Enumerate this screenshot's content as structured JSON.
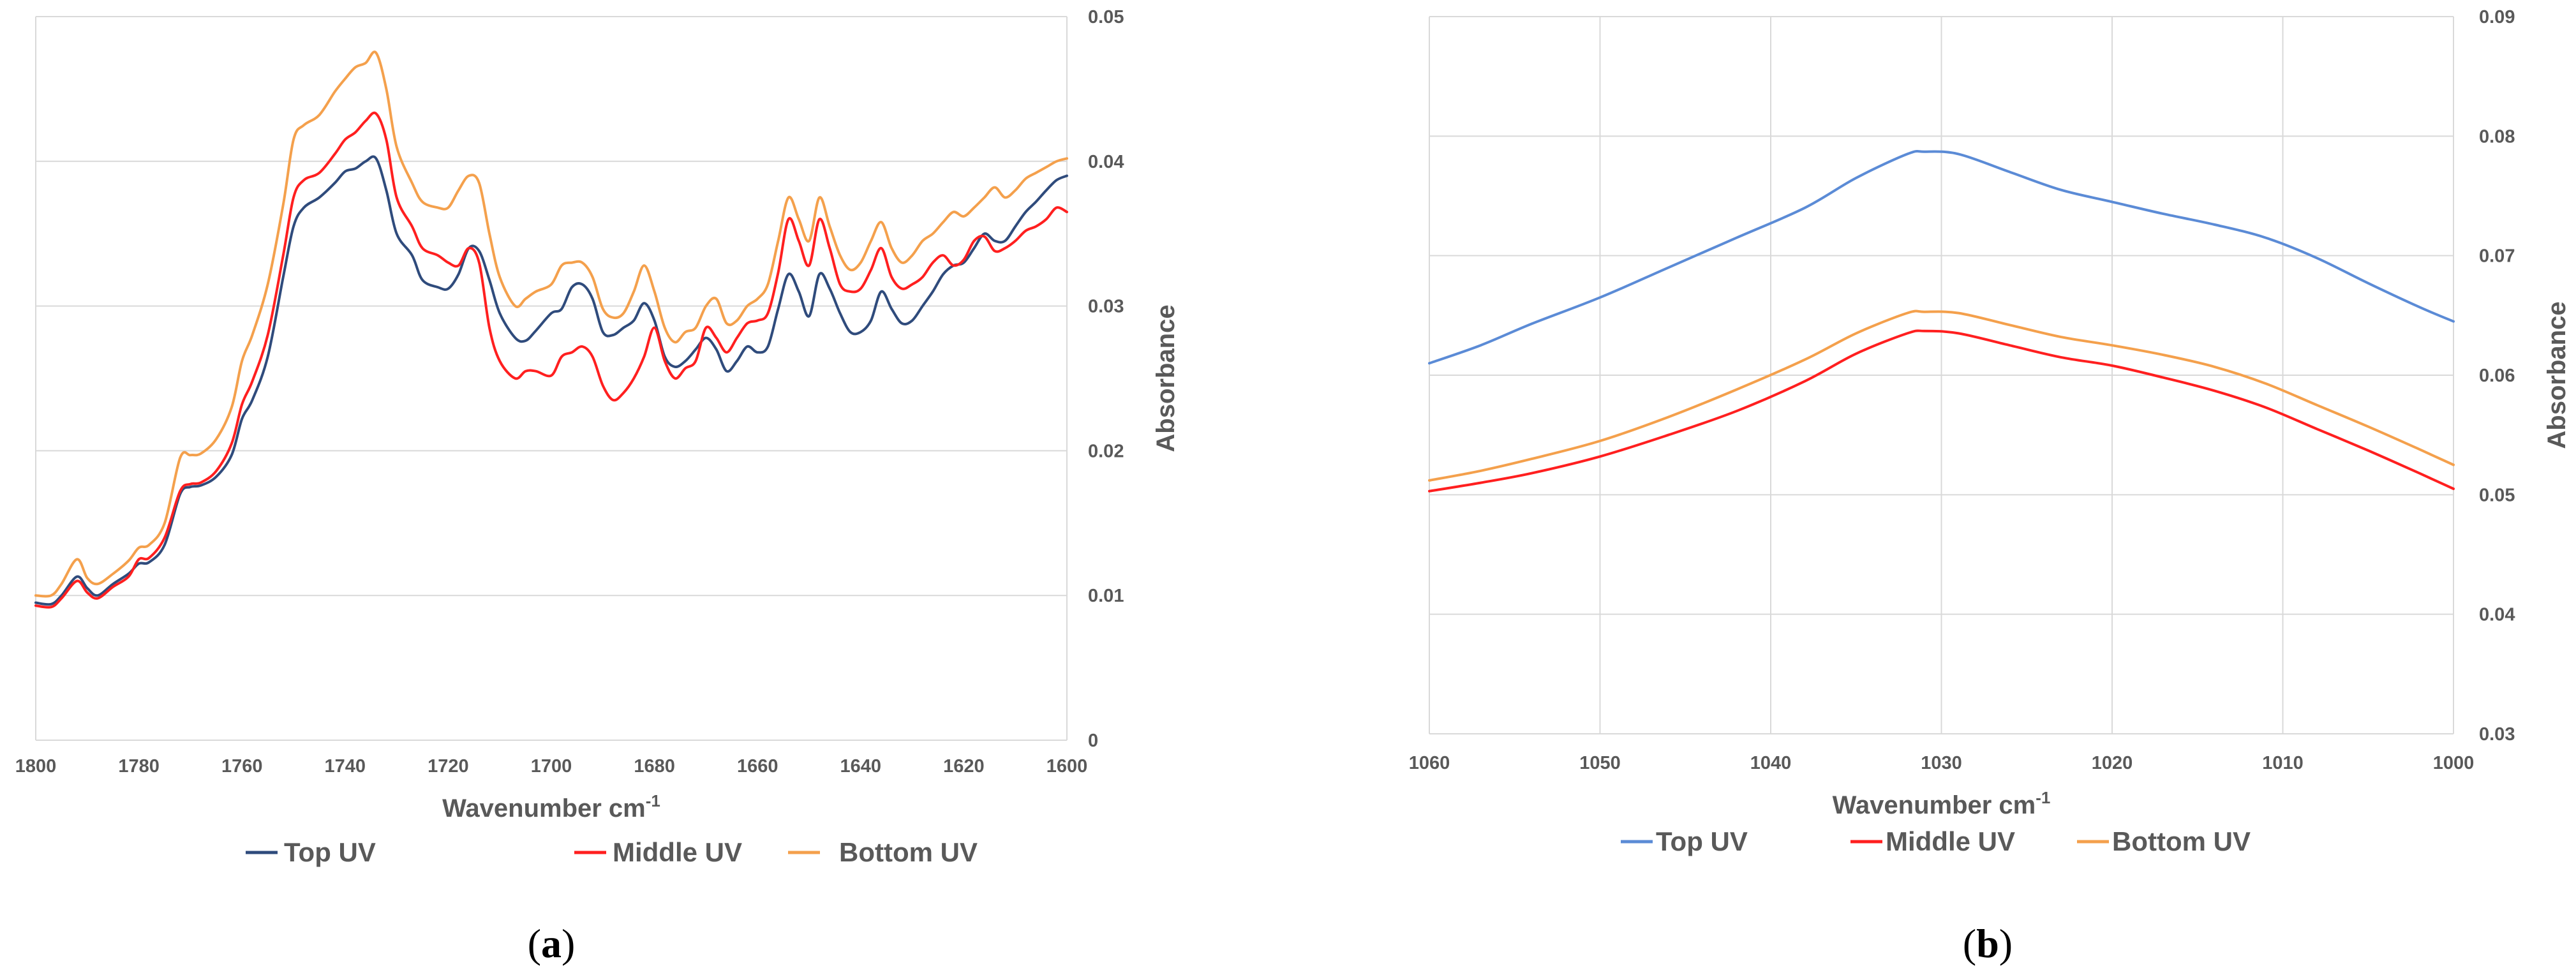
{
  "colors": {
    "top_a": "#2f4b7c",
    "top_b": "#5b8bd6",
    "middle": "#ff1f1f",
    "bottom": "#f4a04c",
    "grid": "#d9d9d9",
    "text": "#595959"
  },
  "chart_data": [
    {
      "id": "a",
      "type": "line",
      "panel_label": {
        "open": "(",
        "letter": "a",
        "close": ")"
      },
      "xlabel": "Wavenumber cm",
      "xlabel_sup": "-1",
      "ylabel": "Absorbance",
      "x_reversed": true,
      "xlim": [
        1800,
        1600
      ],
      "ylim": [
        0,
        0.05
      ],
      "xticks": [
        1800,
        1780,
        1760,
        1740,
        1720,
        1700,
        1680,
        1660,
        1640,
        1620,
        1600
      ],
      "yticks": [
        0,
        0.01,
        0.02,
        0.03,
        0.04,
        0.05
      ],
      "ytick_labels": [
        "0",
        "0.01",
        "0.02",
        "0.03",
        "0.04",
        "0.05"
      ],
      "grid": "horizontal",
      "series": [
        {
          "name": "Top UV",
          "color": "#2f4b7c",
          "x": [
            1800,
            1797,
            1795,
            1792,
            1790,
            1788,
            1785,
            1782,
            1780,
            1778,
            1775,
            1772,
            1770,
            1768,
            1765,
            1762,
            1760,
            1758,
            1755,
            1752,
            1750,
            1748,
            1745,
            1742,
            1740,
            1738,
            1736,
            1734,
            1732,
            1730,
            1727,
            1725,
            1722,
            1720,
            1718,
            1716,
            1714,
            1712,
            1710,
            1707,
            1705,
            1703,
            1700,
            1698,
            1696,
            1694,
            1692,
            1690,
            1688,
            1686,
            1684,
            1682,
            1680,
            1678,
            1676,
            1674,
            1672,
            1670,
            1668,
            1666,
            1664,
            1662,
            1660,
            1658,
            1656,
            1654,
            1652,
            1650,
            1648,
            1646,
            1644,
            1642,
            1640,
            1638,
            1636,
            1634,
            1632,
            1630,
            1628,
            1626,
            1624,
            1622,
            1620,
            1618,
            1616,
            1614,
            1612,
            1610,
            1608,
            1606,
            1604,
            1602,
            1600
          ],
          "y": [
            0.0095,
            0.0094,
            0.01,
            0.0113,
            0.0105,
            0.01,
            0.0108,
            0.0115,
            0.0122,
            0.0123,
            0.0135,
            0.017,
            0.0175,
            0.0176,
            0.0182,
            0.0197,
            0.0222,
            0.0235,
            0.0265,
            0.032,
            0.0355,
            0.0368,
            0.0375,
            0.0385,
            0.0393,
            0.0395,
            0.04,
            0.0402,
            0.038,
            0.035,
            0.0335,
            0.0318,
            0.0313,
            0.0312,
            0.0322,
            0.034,
            0.0338,
            0.0318,
            0.0295,
            0.0278,
            0.0276,
            0.0283,
            0.0295,
            0.0298,
            0.0313,
            0.0315,
            0.0305,
            0.0282,
            0.028,
            0.0285,
            0.029,
            0.0302,
            0.029,
            0.0265,
            0.0258,
            0.0262,
            0.027,
            0.0278,
            0.027,
            0.0255,
            0.0262,
            0.0272,
            0.0268,
            0.0272,
            0.0298,
            0.0322,
            0.031,
            0.0293,
            0.0322,
            0.0312,
            0.0295,
            0.0282,
            0.0282,
            0.029,
            0.031,
            0.0298,
            0.0288,
            0.029,
            0.03,
            0.031,
            0.0322,
            0.0328,
            0.033,
            0.034,
            0.035,
            0.0345,
            0.0345,
            0.0355,
            0.0365,
            0.0372,
            0.038,
            0.0387,
            0.039
          ]
        },
        {
          "name": "Middle UV",
          "color": "#ff1f1f",
          "x": [
            1800,
            1797,
            1795,
            1792,
            1790,
            1788,
            1785,
            1782,
            1780,
            1778,
            1775,
            1772,
            1770,
            1768,
            1765,
            1762,
            1760,
            1758,
            1755,
            1752,
            1750,
            1748,
            1745,
            1742,
            1740,
            1738,
            1736,
            1734,
            1732,
            1730,
            1727,
            1725,
            1722,
            1720,
            1718,
            1716,
            1714,
            1712,
            1710,
            1707,
            1705,
            1703,
            1700,
            1698,
            1696,
            1694,
            1692,
            1690,
            1688,
            1686,
            1684,
            1682,
            1680,
            1678,
            1676,
            1674,
            1672,
            1670,
            1668,
            1666,
            1664,
            1662,
            1660,
            1658,
            1656,
            1654,
            1652,
            1650,
            1648,
            1646,
            1644,
            1642,
            1640,
            1638,
            1636,
            1634,
            1632,
            1630,
            1628,
            1626,
            1624,
            1622,
            1620,
            1618,
            1616,
            1614,
            1612,
            1610,
            1608,
            1606,
            1604,
            1602,
            1600
          ],
          "y": [
            0.0093,
            0.0092,
            0.0098,
            0.011,
            0.0102,
            0.0098,
            0.0106,
            0.0113,
            0.0125,
            0.0126,
            0.014,
            0.0172,
            0.0177,
            0.0178,
            0.0186,
            0.0205,
            0.0232,
            0.0248,
            0.028,
            0.0335,
            0.0375,
            0.0387,
            0.0392,
            0.0405,
            0.0415,
            0.042,
            0.0428,
            0.0433,
            0.0415,
            0.0375,
            0.0355,
            0.034,
            0.0335,
            0.033,
            0.0328,
            0.034,
            0.033,
            0.0285,
            0.0262,
            0.025,
            0.0255,
            0.0255,
            0.0252,
            0.0265,
            0.0268,
            0.0272,
            0.0265,
            0.0245,
            0.0235,
            0.024,
            0.025,
            0.0265,
            0.0285,
            0.0262,
            0.025,
            0.0257,
            0.0262,
            0.0285,
            0.0278,
            0.0268,
            0.0278,
            0.0288,
            0.029,
            0.0295,
            0.0323,
            0.036,
            0.0345,
            0.0328,
            0.036,
            0.034,
            0.0315,
            0.031,
            0.0312,
            0.0325,
            0.034,
            0.032,
            0.0312,
            0.0315,
            0.032,
            0.033,
            0.0335,
            0.0328,
            0.0332,
            0.0345,
            0.0348,
            0.0338,
            0.034,
            0.0345,
            0.0352,
            0.0355,
            0.036,
            0.0368,
            0.0365
          ]
        },
        {
          "name": "Bottom UV",
          "color": "#f4a04c",
          "x": [
            1800,
            1797,
            1795,
            1792,
            1790,
            1788,
            1785,
            1782,
            1780,
            1778,
            1775,
            1772,
            1770,
            1768,
            1765,
            1762,
            1760,
            1758,
            1755,
            1752,
            1750,
            1748,
            1745,
            1742,
            1740,
            1738,
            1736,
            1734,
            1732,
            1730,
            1727,
            1725,
            1722,
            1720,
            1718,
            1716,
            1714,
            1712,
            1710,
            1707,
            1705,
            1703,
            1700,
            1698,
            1696,
            1694,
            1692,
            1690,
            1688,
            1686,
            1684,
            1682,
            1680,
            1678,
            1676,
            1674,
            1672,
            1670,
            1668,
            1666,
            1664,
            1662,
            1660,
            1658,
            1656,
            1654,
            1652,
            1650,
            1648,
            1646,
            1644,
            1642,
            1640,
            1638,
            1636,
            1634,
            1632,
            1630,
            1628,
            1626,
            1624,
            1622,
            1620,
            1618,
            1616,
            1614,
            1612,
            1610,
            1608,
            1606,
            1604,
            1602,
            1600
          ],
          "y": [
            0.01,
            0.01,
            0.0108,
            0.0125,
            0.0112,
            0.0108,
            0.0115,
            0.0124,
            0.0133,
            0.0135,
            0.015,
            0.0195,
            0.0197,
            0.0198,
            0.0208,
            0.023,
            0.0262,
            0.028,
            0.0315,
            0.037,
            0.0415,
            0.0425,
            0.0432,
            0.0448,
            0.0457,
            0.0465,
            0.0468,
            0.0475,
            0.045,
            0.041,
            0.0385,
            0.0372,
            0.0368,
            0.0368,
            0.038,
            0.039,
            0.0385,
            0.035,
            0.032,
            0.03,
            0.0305,
            0.031,
            0.0315,
            0.0328,
            0.033,
            0.033,
            0.032,
            0.0298,
            0.0292,
            0.0295,
            0.031,
            0.0328,
            0.031,
            0.0285,
            0.0275,
            0.0282,
            0.0285,
            0.03,
            0.0305,
            0.0288,
            0.029,
            0.03,
            0.0305,
            0.0315,
            0.0345,
            0.0375,
            0.036,
            0.0345,
            0.0375,
            0.0355,
            0.0335,
            0.0325,
            0.033,
            0.0345,
            0.0358,
            0.034,
            0.033,
            0.0335,
            0.0345,
            0.035,
            0.0358,
            0.0365,
            0.0362,
            0.0368,
            0.0375,
            0.0382,
            0.0375,
            0.038,
            0.0388,
            0.0392,
            0.0396,
            0.04,
            0.0402
          ]
        }
      ],
      "legend": {
        "placement": "bottom",
        "labels": [
          "Top UV",
          "Middle UV",
          "Bottom UV"
        ]
      }
    },
    {
      "id": "b",
      "type": "line",
      "panel_label": {
        "open": "(",
        "letter": "b",
        "close": ")"
      },
      "xlabel": "Wavenumber cm",
      "xlabel_sup": "-1",
      "ylabel": "Absorbance",
      "x_reversed": true,
      "xlim": [
        1060,
        1000
      ],
      "ylim": [
        0.03,
        0.09
      ],
      "xticks": [
        1060,
        1050,
        1040,
        1030,
        1020,
        1010,
        1000
      ],
      "yticks": [
        0.03,
        0.04,
        0.05,
        0.06,
        0.07,
        0.08,
        0.09
      ],
      "ytick_labels": [
        "0.03",
        "0.04",
        "0.05",
        "0.06",
        "0.07",
        "0.08",
        "0.09"
      ],
      "grid": "both",
      "series": [
        {
          "name": "Top UV",
          "color": "#5b8bd6",
          "x": [
            1060,
            1057,
            1054,
            1050,
            1046,
            1042,
            1038,
            1035,
            1032,
            1031,
            1029,
            1026,
            1023,
            1020,
            1017,
            1014,
            1011,
            1008,
            1005,
            1002,
            1000
          ],
          "y": [
            0.061,
            0.0625,
            0.0643,
            0.0665,
            0.069,
            0.0715,
            0.074,
            0.0765,
            0.0785,
            0.0787,
            0.0785,
            0.077,
            0.0755,
            0.0745,
            0.0735,
            0.0726,
            0.0715,
            0.0698,
            0.0677,
            0.0657,
            0.0645
          ]
        },
        {
          "name": "Middle UV",
          "color": "#ff1f1f",
          "x": [
            1060,
            1057,
            1054,
            1050,
            1046,
            1042,
            1038,
            1035,
            1032,
            1031,
            1029,
            1026,
            1023,
            1020,
            1017,
            1014,
            1011,
            1008,
            1005,
            1002,
            1000
          ],
          "y": [
            0.0503,
            0.051,
            0.0518,
            0.0532,
            0.055,
            0.057,
            0.0595,
            0.0618,
            0.0635,
            0.0637,
            0.0635,
            0.0625,
            0.0615,
            0.0608,
            0.0598,
            0.0587,
            0.0573,
            0.0555,
            0.0537,
            0.0518,
            0.0505
          ]
        },
        {
          "name": "Bottom UV",
          "color": "#f4a04c",
          "x": [
            1060,
            1057,
            1054,
            1050,
            1046,
            1042,
            1038,
            1035,
            1032,
            1031,
            1029,
            1026,
            1023,
            1020,
            1017,
            1014,
            1011,
            1008,
            1005,
            1002,
            1000
          ],
          "y": [
            0.0512,
            0.052,
            0.053,
            0.0545,
            0.0565,
            0.0588,
            0.0613,
            0.0635,
            0.0652,
            0.0653,
            0.0652,
            0.0642,
            0.0632,
            0.0625,
            0.0617,
            0.0607,
            0.0593,
            0.0575,
            0.0557,
            0.0538,
            0.0525
          ]
        }
      ],
      "legend": {
        "placement": "bottom",
        "labels": [
          "Top UV",
          "Middle UV",
          "Bottom UV"
        ]
      }
    }
  ]
}
